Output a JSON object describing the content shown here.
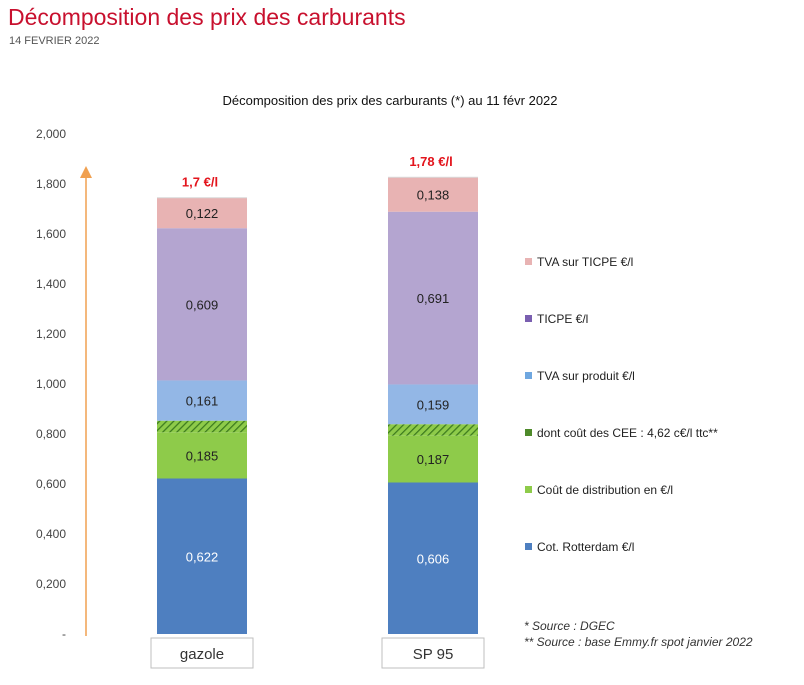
{
  "page": {
    "title": "Décomposition des prix des carburants",
    "date": "14 FEVRIER 2022"
  },
  "colors": {
    "page_title": "#c8102e",
    "axis_arrow": "#f0a050",
    "total_label": "#e3141c",
    "hatch_dark": "#3c7a1e"
  },
  "chart_data": {
    "type": "bar",
    "stacked": true,
    "title": "Décomposition des prix des carburants (*) au 11 févr 2022",
    "ylim": [
      0,
      2.0
    ],
    "yticks": [
      "-",
      "0,200",
      "0,400",
      "0,600",
      "0,800",
      "1,000",
      "1,200",
      "1,400",
      "1,600",
      "1,800",
      "2,000"
    ],
    "categories": [
      "gazole",
      "SP 95"
    ],
    "totals": [
      "1,7 €/l",
      "1,78 €/l"
    ],
    "series": [
      {
        "name": "Cot. Rotterdam €/l",
        "values": [
          0.622,
          0.606
        ],
        "labels": [
          "0,622",
          "0,606"
        ],
        "color": "#4e7fc0",
        "label_color": "light"
      },
      {
        "name": "Coût de distribution en €/l",
        "values": [
          0.185,
          0.187
        ],
        "labels": [
          "0,185",
          "0,187"
        ],
        "color": "#8ecb4a",
        "label_color": "dark"
      },
      {
        "name": "dont coût des CEE : 4,62 c€/l ttc**",
        "values": [
          0.0462,
          0.0462
        ],
        "labels": [
          "",
          ""
        ],
        "color": "#6aa83a",
        "pattern": "hatch",
        "label_color": "dark"
      },
      {
        "name": "TVA sur produit €/l",
        "values": [
          0.161,
          0.159
        ],
        "labels": [
          "0,161",
          "0,159"
        ],
        "color": "#93b7e6",
        "label_color": "dark"
      },
      {
        "name": "TICPE €/l",
        "values": [
          0.609,
          0.691
        ],
        "labels": [
          "0,609",
          "0,691"
        ],
        "color": "#b4a5d0",
        "label_color": "dark"
      },
      {
        "name": "TVA sur TICPE €/l",
        "values": [
          0.122,
          0.138
        ],
        "labels": [
          "0,122",
          "0,138"
        ],
        "color": "#e8b3b3",
        "label_color": "dark"
      }
    ],
    "legend_order": [
      5,
      4,
      3,
      2,
      1,
      0
    ],
    "legend_colors": [
      "#e8b3b3",
      "#7a5fb0",
      "#6fa7e0",
      "#4e8a2a",
      "#8ecb4a",
      "#4e7fc0"
    ],
    "notes": [
      "* Source : DGEC",
      "** Source : base Emmy.fr spot janvier 2022"
    ]
  }
}
